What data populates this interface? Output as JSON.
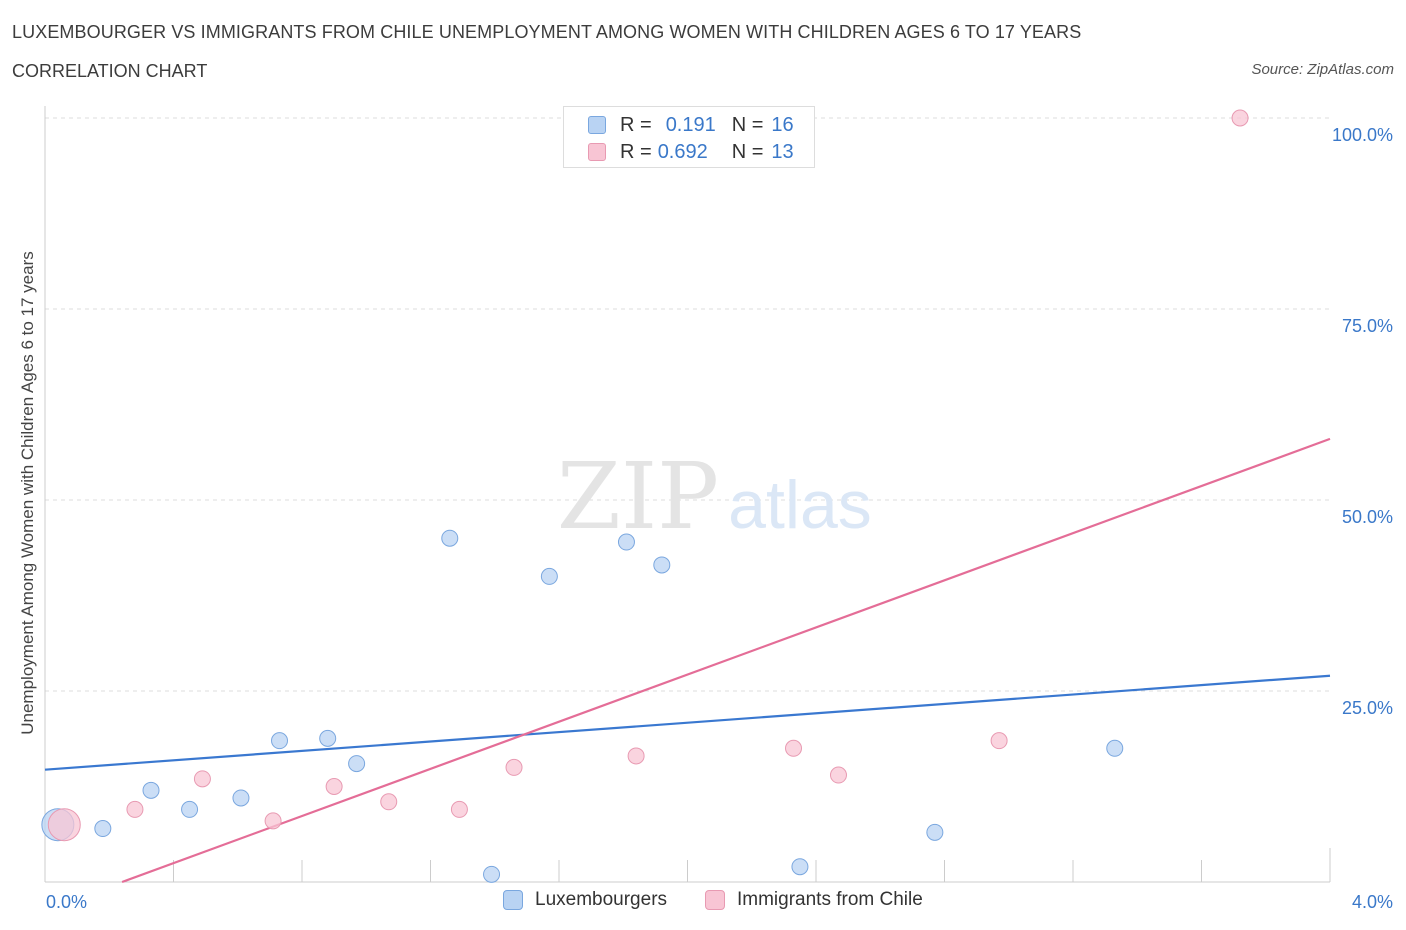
{
  "header": {
    "title": "LUXEMBOURGER VS IMMIGRANTS FROM CHILE UNEMPLOYMENT AMONG WOMEN WITH CHILDREN AGES 6 TO 17 YEARS",
    "subtitle": "CORRELATION CHART",
    "source": "Source: ZipAtlas.com"
  },
  "watermark": {
    "zip": "ZIP",
    "atlas": "atlas"
  },
  "legend": {
    "rows": [
      {
        "r_label": "R =",
        "r_value": "0.191",
        "n_label": "N =",
        "n_value": "16"
      },
      {
        "r_label": "R =",
        "r_value": "0.692",
        "n_label": "N =",
        "n_value": "13"
      }
    ]
  },
  "colors": {
    "blue_fill": "#b9d3f3",
    "blue_stroke": "#7aa7df",
    "blue_line": "#3a78d0",
    "pink_fill": "#f8c5d4",
    "pink_stroke": "#e89ab2",
    "pink_line": "#e46d97",
    "tick_label": "#3a78c9",
    "grid": "#dddddd"
  },
  "chart_data": {
    "type": "scatter",
    "title": "LUXEMBOURGER VS IMMIGRANTS FROM CHILE UNEMPLOYMENT AMONG WOMEN WITH CHILDREN AGES 6 TO 17 YEARS",
    "xlabel": "",
    "ylabel": "Unemployment Among Women with Children Ages 6 to 17 years",
    "xlim": [
      0,
      4.0
    ],
    "ylim": [
      0,
      100
    ],
    "x_tick_labels": [
      "0.0%",
      "4.0%"
    ],
    "y_tick_labels": [
      "25.0%",
      "50.0%",
      "75.0%",
      "100.0%"
    ],
    "y_ticks": [
      25,
      50,
      75,
      100
    ],
    "grid": true,
    "legend_position": "bottom",
    "series": [
      {
        "name": "Luxembourgers",
        "r": 0.191,
        "n": 16,
        "points": [
          {
            "x": 0.04,
            "y": 7.5,
            "big": true
          },
          {
            "x": 0.18,
            "y": 7.0
          },
          {
            "x": 0.33,
            "y": 12.0
          },
          {
            "x": 0.45,
            "y": 9.5
          },
          {
            "x": 0.61,
            "y": 11.0
          },
          {
            "x": 0.73,
            "y": 18.5
          },
          {
            "x": 0.88,
            "y": 18.8
          },
          {
            "x": 0.97,
            "y": 15.5
          },
          {
            "x": 1.26,
            "y": 45.0
          },
          {
            "x": 1.39,
            "y": 1.0
          },
          {
            "x": 1.57,
            "y": 40.0
          },
          {
            "x": 1.81,
            "y": 44.5
          },
          {
            "x": 1.92,
            "y": 41.5
          },
          {
            "x": 2.35,
            "y": 2.0
          },
          {
            "x": 2.77,
            "y": 6.5
          },
          {
            "x": 3.33,
            "y": 17.5
          }
        ],
        "trend": {
          "x": [
            0,
            4.0
          ],
          "y": [
            14.7,
            27.0
          ]
        }
      },
      {
        "name": "Immigrants from Chile",
        "r": 0.692,
        "n": 13,
        "points": [
          {
            "x": 0.06,
            "y": 7.5,
            "big": true
          },
          {
            "x": 0.28,
            "y": 9.5
          },
          {
            "x": 0.49,
            "y": 13.5
          },
          {
            "x": 0.71,
            "y": 8.0
          },
          {
            "x": 0.9,
            "y": 12.5
          },
          {
            "x": 1.07,
            "y": 10.5
          },
          {
            "x": 1.29,
            "y": 9.5
          },
          {
            "x": 1.46,
            "y": 15.0
          },
          {
            "x": 1.84,
            "y": 16.5
          },
          {
            "x": 2.33,
            "y": 17.5
          },
          {
            "x": 2.47,
            "y": 14.0
          },
          {
            "x": 2.97,
            "y": 18.5
          },
          {
            "x": 3.72,
            "y": 100.0
          }
        ],
        "trend": {
          "x": [
            0.24,
            4.0
          ],
          "y": [
            0.0,
            58.0
          ]
        }
      }
    ]
  }
}
